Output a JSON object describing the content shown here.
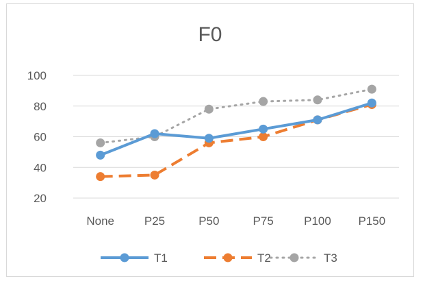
{
  "chart_data": {
    "type": "line",
    "title": "F0",
    "xlabel": "",
    "ylabel": "",
    "categories": [
      "None",
      "P25",
      "P50",
      "P75",
      "P100",
      "P150"
    ],
    "ylim": [
      20,
      100
    ],
    "yticks": [
      20,
      40,
      60,
      80,
      100
    ],
    "grid": true,
    "legend_position": "bottom",
    "series": [
      {
        "name": "T1",
        "values": [
          48,
          62,
          59,
          65,
          71,
          82
        ],
        "color": "#5b9bd5",
        "style": "solid"
      },
      {
        "name": "T2",
        "values": [
          34,
          35,
          56,
          60,
          71,
          81
        ],
        "color": "#ed7d31",
        "style": "dashed"
      },
      {
        "name": "T3",
        "values": [
          56,
          60,
          78,
          83,
          84,
          91
        ],
        "color": "#a5a5a5",
        "style": "dotted"
      }
    ]
  }
}
